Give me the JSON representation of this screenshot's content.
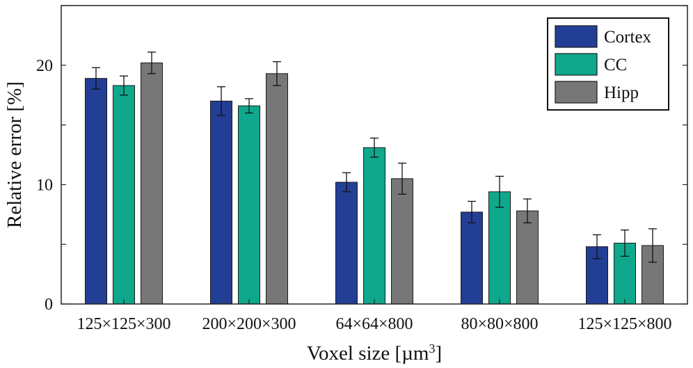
{
  "chart_data": {
    "type": "bar",
    "title": "",
    "xlabel": "Voxel size [µm",
    "xlabel_superscript": "3",
    "xlabel_suffix": "]",
    "ylabel": "Relative  error [%]",
    "ylim": [
      0,
      25
    ],
    "yticks": [
      0,
      10,
      20
    ],
    "grid": false,
    "legend_position": "top-right",
    "categories": [
      "125×125×300",
      "200×200×300",
      "64×64×800",
      "80×80×800",
      "125×125×800"
    ],
    "series": [
      {
        "name": "Cortex",
        "color": "#233e95",
        "values": [
          18.9,
          17.0,
          10.2,
          7.7,
          4.8
        ],
        "errors": [
          0.9,
          1.2,
          0.8,
          0.9,
          1.0
        ]
      },
      {
        "name": "CC",
        "color": "#0fa88c",
        "values": [
          18.3,
          16.6,
          13.1,
          9.4,
          5.1
        ],
        "errors": [
          0.8,
          0.6,
          0.8,
          1.3,
          1.1
        ]
      },
      {
        "name": "Hipp",
        "color": "#777777",
        "values": [
          20.2,
          19.3,
          10.5,
          7.8,
          4.9
        ],
        "errors": [
          0.9,
          1.0,
          1.3,
          1.0,
          1.4
        ]
      }
    ]
  }
}
